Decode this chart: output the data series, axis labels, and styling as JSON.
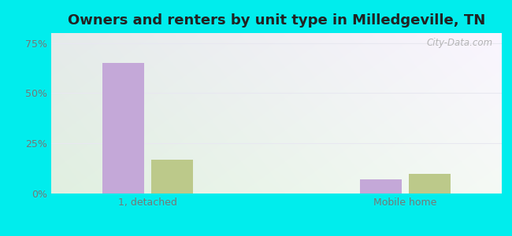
{
  "title": "Owners and renters by unit type in Milledgeville, TN",
  "categories": [
    "1, detached",
    "Mobile home"
  ],
  "owner_values": [
    65,
    7
  ],
  "renter_values": [
    17,
    10
  ],
  "owner_color": "#c4a8d8",
  "renter_color": "#bcc98a",
  "bar_width": 0.32,
  "ylim": [
    0,
    80
  ],
  "yticks": [
    0,
    25,
    50,
    75
  ],
  "yticklabels": [
    "0%",
    "25%",
    "50%",
    "75%"
  ],
  "outer_bg": "#00eded",
  "gridcolor": "#e8e8f0",
  "title_fontsize": 13,
  "tick_fontsize": 9,
  "legend_fontsize": 9,
  "watermark": "City-Data.com",
  "x_positions": [
    0.75,
    2.75
  ],
  "xlim": [
    0,
    3.5
  ]
}
